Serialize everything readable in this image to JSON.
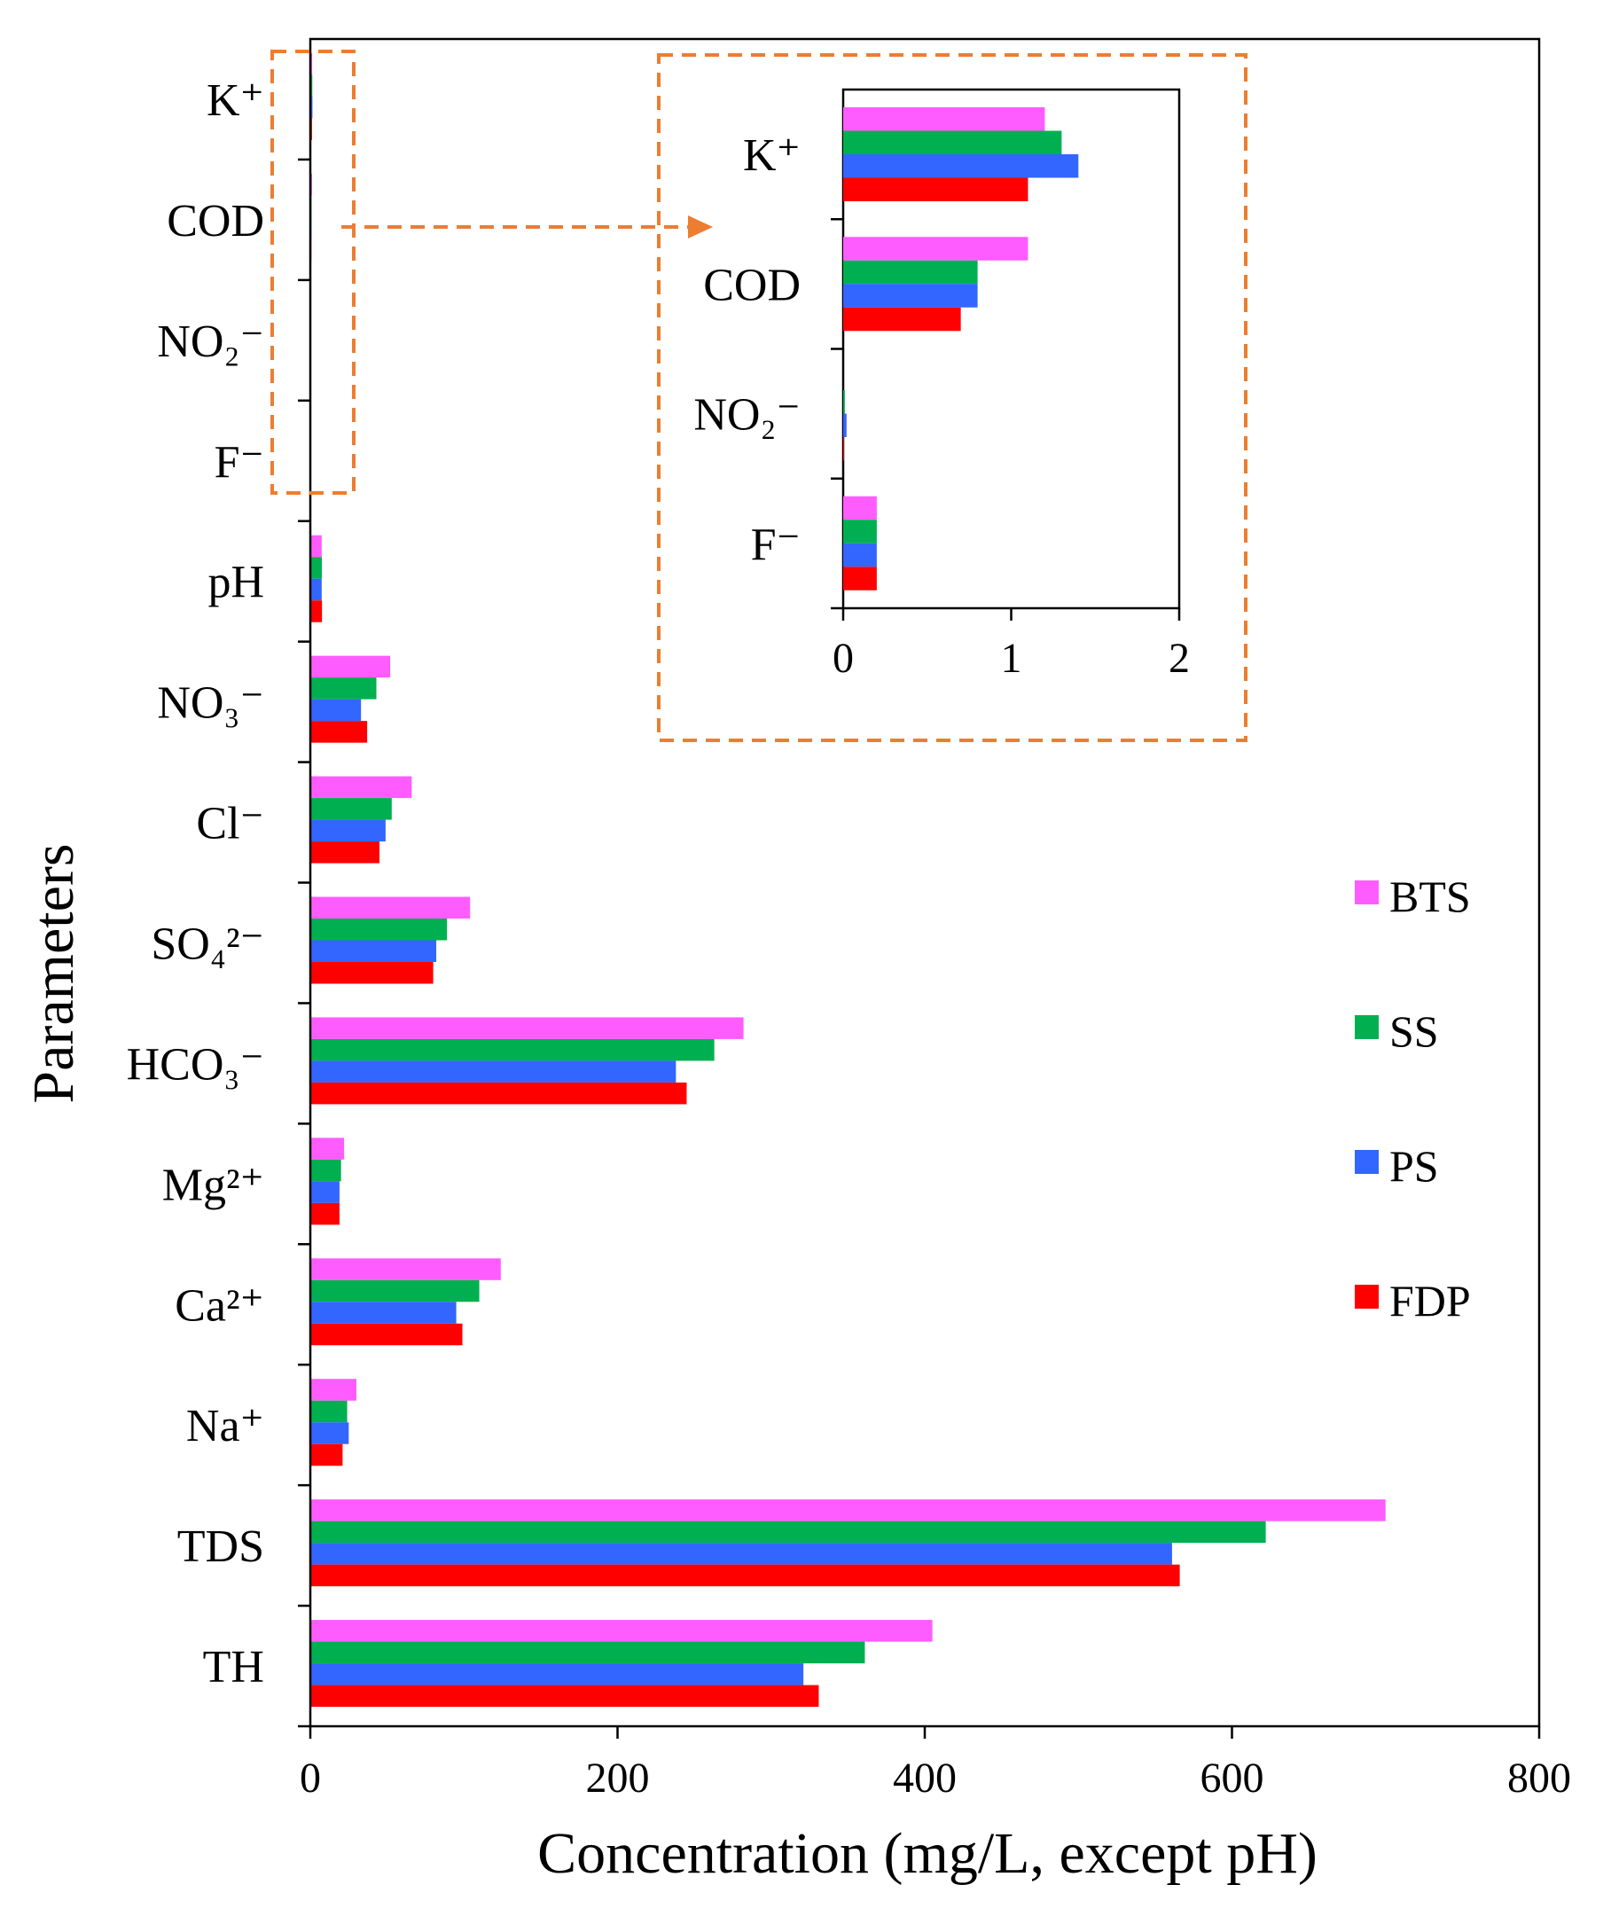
{
  "chart_data": [
    {
      "type": "bar",
      "orientation": "horizontal",
      "title": "",
      "xlabel": "Concentration (mg/L, except pH)",
      "ylabel": "Parameters",
      "xlim": [
        0,
        800
      ],
      "xticks": [
        "0",
        "200",
        "400",
        "600",
        "800"
      ],
      "grid": false,
      "legend_position": "right",
      "categories": [
        "K⁺",
        "COD",
        "NO₂⁻",
        "F⁻",
        "pH",
        "NO₃⁻",
        "Cl⁻",
        "SO₄²⁻",
        "HCO₃⁻",
        "Mg²⁺",
        "Ca²⁺",
        "Na⁺",
        "TDS",
        "TH"
      ],
      "series": [
        {
          "name": "BTS",
          "color": "#ff5cff",
          "values": [
            1.2,
            1.1,
            0,
            0.2,
            7.4,
            52,
            66,
            104,
            282,
            22,
            124,
            30,
            700,
            405
          ]
        },
        {
          "name": "SS",
          "color": "#00b050",
          "values": [
            1.3,
            0.8,
            0.01,
            0.2,
            7.5,
            43,
            53,
            89,
            263,
            20,
            110,
            24,
            622,
            361
          ]
        },
        {
          "name": "PS",
          "color": "#3366ff",
          "values": [
            1.4,
            0.8,
            0.02,
            0.2,
            7.4,
            33,
            49,
            82,
            238,
            19,
            95,
            25,
            561,
            321
          ]
        },
        {
          "name": "FDP",
          "color": "#ff0000",
          "values": [
            1.1,
            0.7,
            0.005,
            0.2,
            7.6,
            37,
            45,
            80,
            245,
            19,
            99,
            21,
            566,
            331
          ]
        }
      ]
    },
    {
      "type": "bar",
      "orientation": "horizontal",
      "title": "",
      "note": "inset (zoom of K⁺, COD, NO₂⁻, F⁻)",
      "xlim": [
        0,
        2
      ],
      "xticks": [
        "0",
        "1",
        "2"
      ],
      "categories": [
        "K⁺",
        "COD",
        "NO₂⁻",
        "F⁻"
      ],
      "series": [
        {
          "name": "BTS",
          "color": "#ff5cff",
          "values": [
            1.2,
            1.1,
            0,
            0.2
          ]
        },
        {
          "name": "SS",
          "color": "#00b050",
          "values": [
            1.3,
            0.8,
            0.01,
            0.2
          ]
        },
        {
          "name": "PS",
          "color": "#3366ff",
          "values": [
            1.4,
            0.8,
            0.02,
            0.2
          ]
        },
        {
          "name": "FDP",
          "color": "#ff0000",
          "values": [
            1.1,
            0.7,
            0.005,
            0.2
          ]
        }
      ]
    }
  ],
  "annotation_color": "#ed7d31"
}
